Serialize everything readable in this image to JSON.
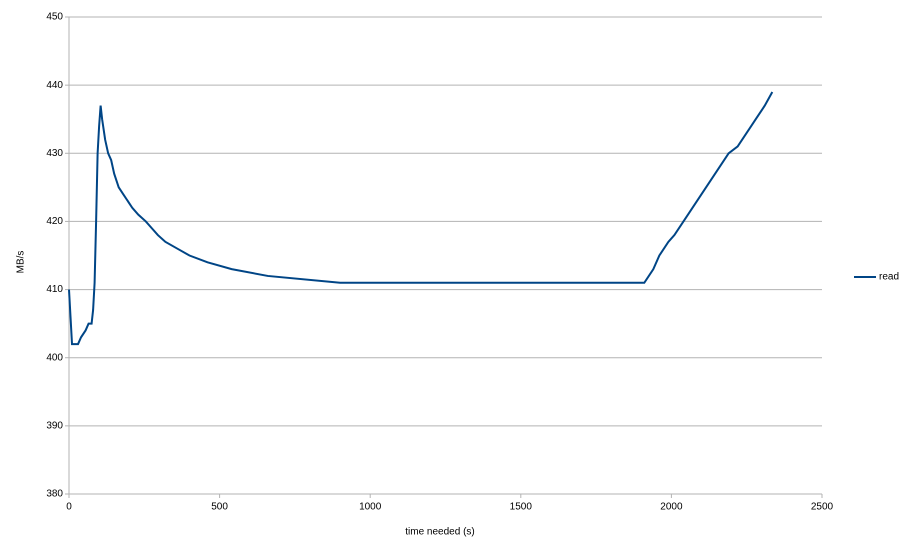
{
  "chart_data": {
    "type": "line",
    "xlabel": "time needed (s)",
    "ylabel": "MB/s",
    "x": [
      0,
      5,
      10,
      30,
      40,
      55,
      65,
      75,
      80,
      85,
      90,
      95,
      100,
      105,
      110,
      120,
      130,
      140,
      150,
      165,
      180,
      195,
      210,
      230,
      255,
      275,
      295,
      320,
      360,
      400,
      460,
      540,
      660,
      900,
      1910,
      1940,
      1960,
      1990,
      2010,
      2040,
      2070,
      2100,
      2130,
      2160,
      2190,
      2220,
      2250,
      2280,
      2310,
      2335
    ],
    "series": [
      {
        "name": "read",
        "color": "#004586",
        "values": [
          410,
          406,
          402,
          402,
          403,
          404,
          405,
          405,
          407,
          411,
          420,
          430,
          434,
          437,
          435,
          432,
          430,
          429,
          427,
          425,
          424,
          423,
          422,
          421,
          420,
          419,
          418,
          417,
          416,
          415,
          414,
          413,
          412,
          411,
          411,
          413,
          415,
          417,
          418,
          420,
          422,
          424,
          426,
          428,
          430,
          431,
          433,
          435,
          437,
          439
        ]
      }
    ],
    "xlim": [
      0,
      2500
    ],
    "xticks": [
      0,
      500,
      1000,
      1500,
      2000,
      2500
    ],
    "ylim": [
      380,
      450
    ],
    "yticks": [
      380,
      390,
      400,
      410,
      420,
      430,
      440,
      450
    ],
    "grid": true,
    "legend": "right"
  }
}
